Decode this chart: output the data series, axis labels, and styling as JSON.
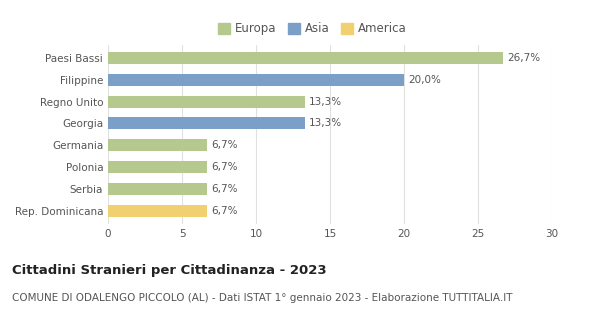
{
  "categories": [
    "Paesi Bassi",
    "Filippine",
    "Regno Unito",
    "Georgia",
    "Germania",
    "Polonia",
    "Serbia",
    "Rep. Dominicana"
  ],
  "values": [
    26.7,
    20.0,
    13.3,
    13.3,
    6.7,
    6.7,
    6.7,
    6.7
  ],
  "labels": [
    "26,7%",
    "20,0%",
    "13,3%",
    "13,3%",
    "6,7%",
    "6,7%",
    "6,7%",
    "6,7%"
  ],
  "colors": [
    "#b5c98e",
    "#7b9fc7",
    "#b5c98e",
    "#7b9fc7",
    "#b5c98e",
    "#b5c98e",
    "#b5c98e",
    "#f0d070"
  ],
  "legend_labels": [
    "Europa",
    "Asia",
    "America"
  ],
  "legend_colors": [
    "#b5c98e",
    "#7b9fc7",
    "#f0d070"
  ],
  "title": "Cittadini Stranieri per Cittadinanza - 2023",
  "subtitle": "COMUNE DI ODALENGO PICCOLO (AL) - Dati ISTAT 1° gennaio 2023 - Elaborazione TUTTITALIA.IT",
  "xlim": [
    0,
    30
  ],
  "xticks": [
    0,
    5,
    10,
    15,
    20,
    25,
    30
  ],
  "background_color": "#ffffff",
  "grid_color": "#e0e0e0",
  "bar_height": 0.55,
  "label_fontsize": 7.5,
  "title_fontsize": 9.5,
  "subtitle_fontsize": 7.5,
  "tick_fontsize": 7.5,
  "legend_fontsize": 8.5
}
